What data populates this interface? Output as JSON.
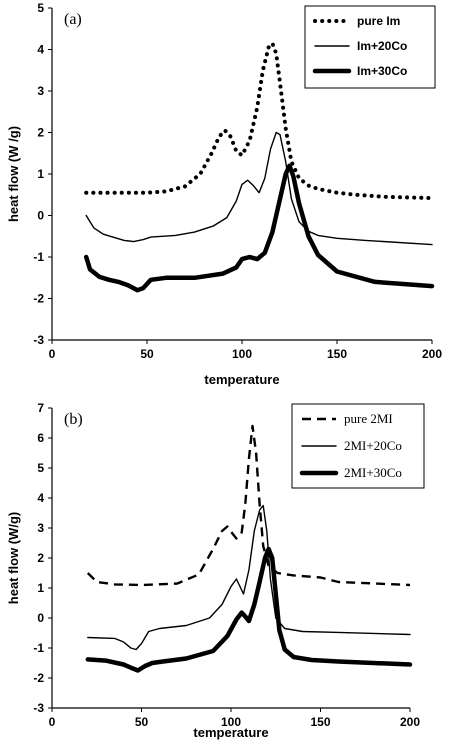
{
  "chart_data": [
    {
      "type": "line",
      "panel_label": "(a)",
      "xlabel": "temperature",
      "ylabel": "heat flow (W /g)",
      "xlim": [
        0,
        200
      ],
      "ylim": [
        -3,
        5
      ],
      "xticks": [
        0,
        50,
        100,
        150,
        200
      ],
      "yticks": [
        -3,
        -2,
        -1,
        0,
        1,
        2,
        3,
        4,
        5
      ],
      "grid": false,
      "legend_position": "top-right",
      "series": [
        {
          "name": "pure Im",
          "style": "dotted",
          "x": [
            18,
            30,
            50,
            60,
            70,
            78,
            84,
            88,
            91,
            94,
            97,
            100,
            104,
            108,
            111,
            114,
            116,
            118,
            120,
            123,
            126,
            130,
            135,
            140,
            150,
            160,
            175,
            200
          ],
          "y": [
            0.55,
            0.55,
            0.55,
            0.58,
            0.7,
            1.0,
            1.5,
            1.9,
            2.05,
            1.9,
            1.55,
            1.45,
            1.8,
            2.6,
            3.5,
            4.05,
            4.15,
            3.9,
            3.2,
            2.1,
            1.3,
            0.9,
            0.72,
            0.64,
            0.55,
            0.5,
            0.45,
            0.42
          ]
        },
        {
          "name": "Im+20Co",
          "style": "thin",
          "x": [
            18,
            22,
            27,
            32,
            38,
            43,
            48,
            52,
            58,
            65,
            75,
            85,
            92,
            97,
            100,
            103,
            106,
            109,
            112,
            115,
            118,
            120,
            123,
            126,
            130,
            135,
            140,
            150,
            165,
            200
          ],
          "y": [
            0.0,
            -0.3,
            -0.45,
            -0.52,
            -0.6,
            -0.63,
            -0.58,
            -0.52,
            -0.5,
            -0.48,
            -0.4,
            -0.25,
            -0.05,
            0.35,
            0.75,
            0.85,
            0.72,
            0.55,
            0.9,
            1.6,
            2.0,
            1.95,
            1.3,
            0.4,
            -0.15,
            -0.38,
            -0.48,
            -0.55,
            -0.6,
            -0.7
          ]
        },
        {
          "name": "Im+30Co",
          "style": "thick",
          "x": [
            18,
            20,
            25,
            30,
            35,
            40,
            45,
            48,
            52,
            60,
            75,
            90,
            97,
            100,
            104,
            108,
            112,
            116,
            120,
            123,
            125,
            127,
            130,
            135,
            140,
            150,
            170,
            200
          ],
          "y": [
            -1.0,
            -1.3,
            -1.48,
            -1.55,
            -1.6,
            -1.68,
            -1.8,
            -1.75,
            -1.55,
            -1.5,
            -1.5,
            -1.4,
            -1.25,
            -1.05,
            -1.0,
            -1.05,
            -0.9,
            -0.4,
            0.4,
            1.0,
            1.2,
            0.95,
            0.3,
            -0.5,
            -0.95,
            -1.35,
            -1.6,
            -1.7
          ]
        }
      ]
    },
    {
      "type": "line",
      "panel_label": "(b)",
      "xlabel": "temperature",
      "ylabel": "heat flow (W/g)",
      "xlim": [
        0,
        200
      ],
      "ylim": [
        -3,
        7
      ],
      "xticks": [
        0,
        50,
        100,
        150,
        200
      ],
      "yticks": [
        -3,
        -2,
        -1,
        0,
        1,
        2,
        3,
        4,
        5,
        6,
        7
      ],
      "grid": false,
      "legend_position": "top-right",
      "series": [
        {
          "name": "pure 2MI",
          "style": "dashed",
          "x": [
            20,
            25,
            35,
            50,
            70,
            82,
            90,
            95,
            98,
            101,
            103,
            106,
            108,
            110,
            112,
            114,
            116,
            118,
            121,
            126,
            135,
            150,
            160,
            180,
            200
          ],
          "y": [
            1.5,
            1.2,
            1.12,
            1.1,
            1.15,
            1.45,
            2.3,
            2.9,
            3.05,
            2.8,
            2.65,
            2.85,
            3.8,
            5.3,
            6.4,
            5.5,
            3.8,
            2.4,
            1.75,
            1.5,
            1.42,
            1.35,
            1.2,
            1.15,
            1.1
          ]
        },
        {
          "name": "2MI+20Co",
          "style": "thin",
          "x": [
            20,
            35,
            40,
            44,
            47,
            50,
            54,
            60,
            75,
            88,
            95,
            100,
            103,
            105,
            107,
            110,
            113,
            116,
            118,
            120,
            122,
            125,
            130,
            140,
            160,
            200
          ],
          "y": [
            -0.65,
            -0.68,
            -0.8,
            -1.0,
            -1.05,
            -0.85,
            -0.45,
            -0.35,
            -0.25,
            0.0,
            0.45,
            1.05,
            1.3,
            1.05,
            0.8,
            1.6,
            2.9,
            3.6,
            3.75,
            2.9,
            1.3,
            0.0,
            -0.35,
            -0.45,
            -0.48,
            -0.55
          ]
        },
        {
          "name": "2MI+30Co",
          "style": "thick",
          "x": [
            20,
            30,
            40,
            45,
            48,
            52,
            56,
            62,
            75,
            90,
            98,
            103,
            106,
            108,
            110,
            113,
            116,
            119,
            121,
            123,
            125,
            127,
            130,
            135,
            145,
            160,
            200
          ],
          "y": [
            -1.38,
            -1.42,
            -1.55,
            -1.68,
            -1.75,
            -1.6,
            -1.5,
            -1.45,
            -1.35,
            -1.1,
            -0.6,
            -0.05,
            0.18,
            0.05,
            -0.1,
            0.45,
            1.2,
            2.0,
            2.3,
            2.0,
            0.8,
            -0.4,
            -1.05,
            -1.3,
            -1.4,
            -1.45,
            -1.55
          ]
        }
      ]
    }
  ]
}
